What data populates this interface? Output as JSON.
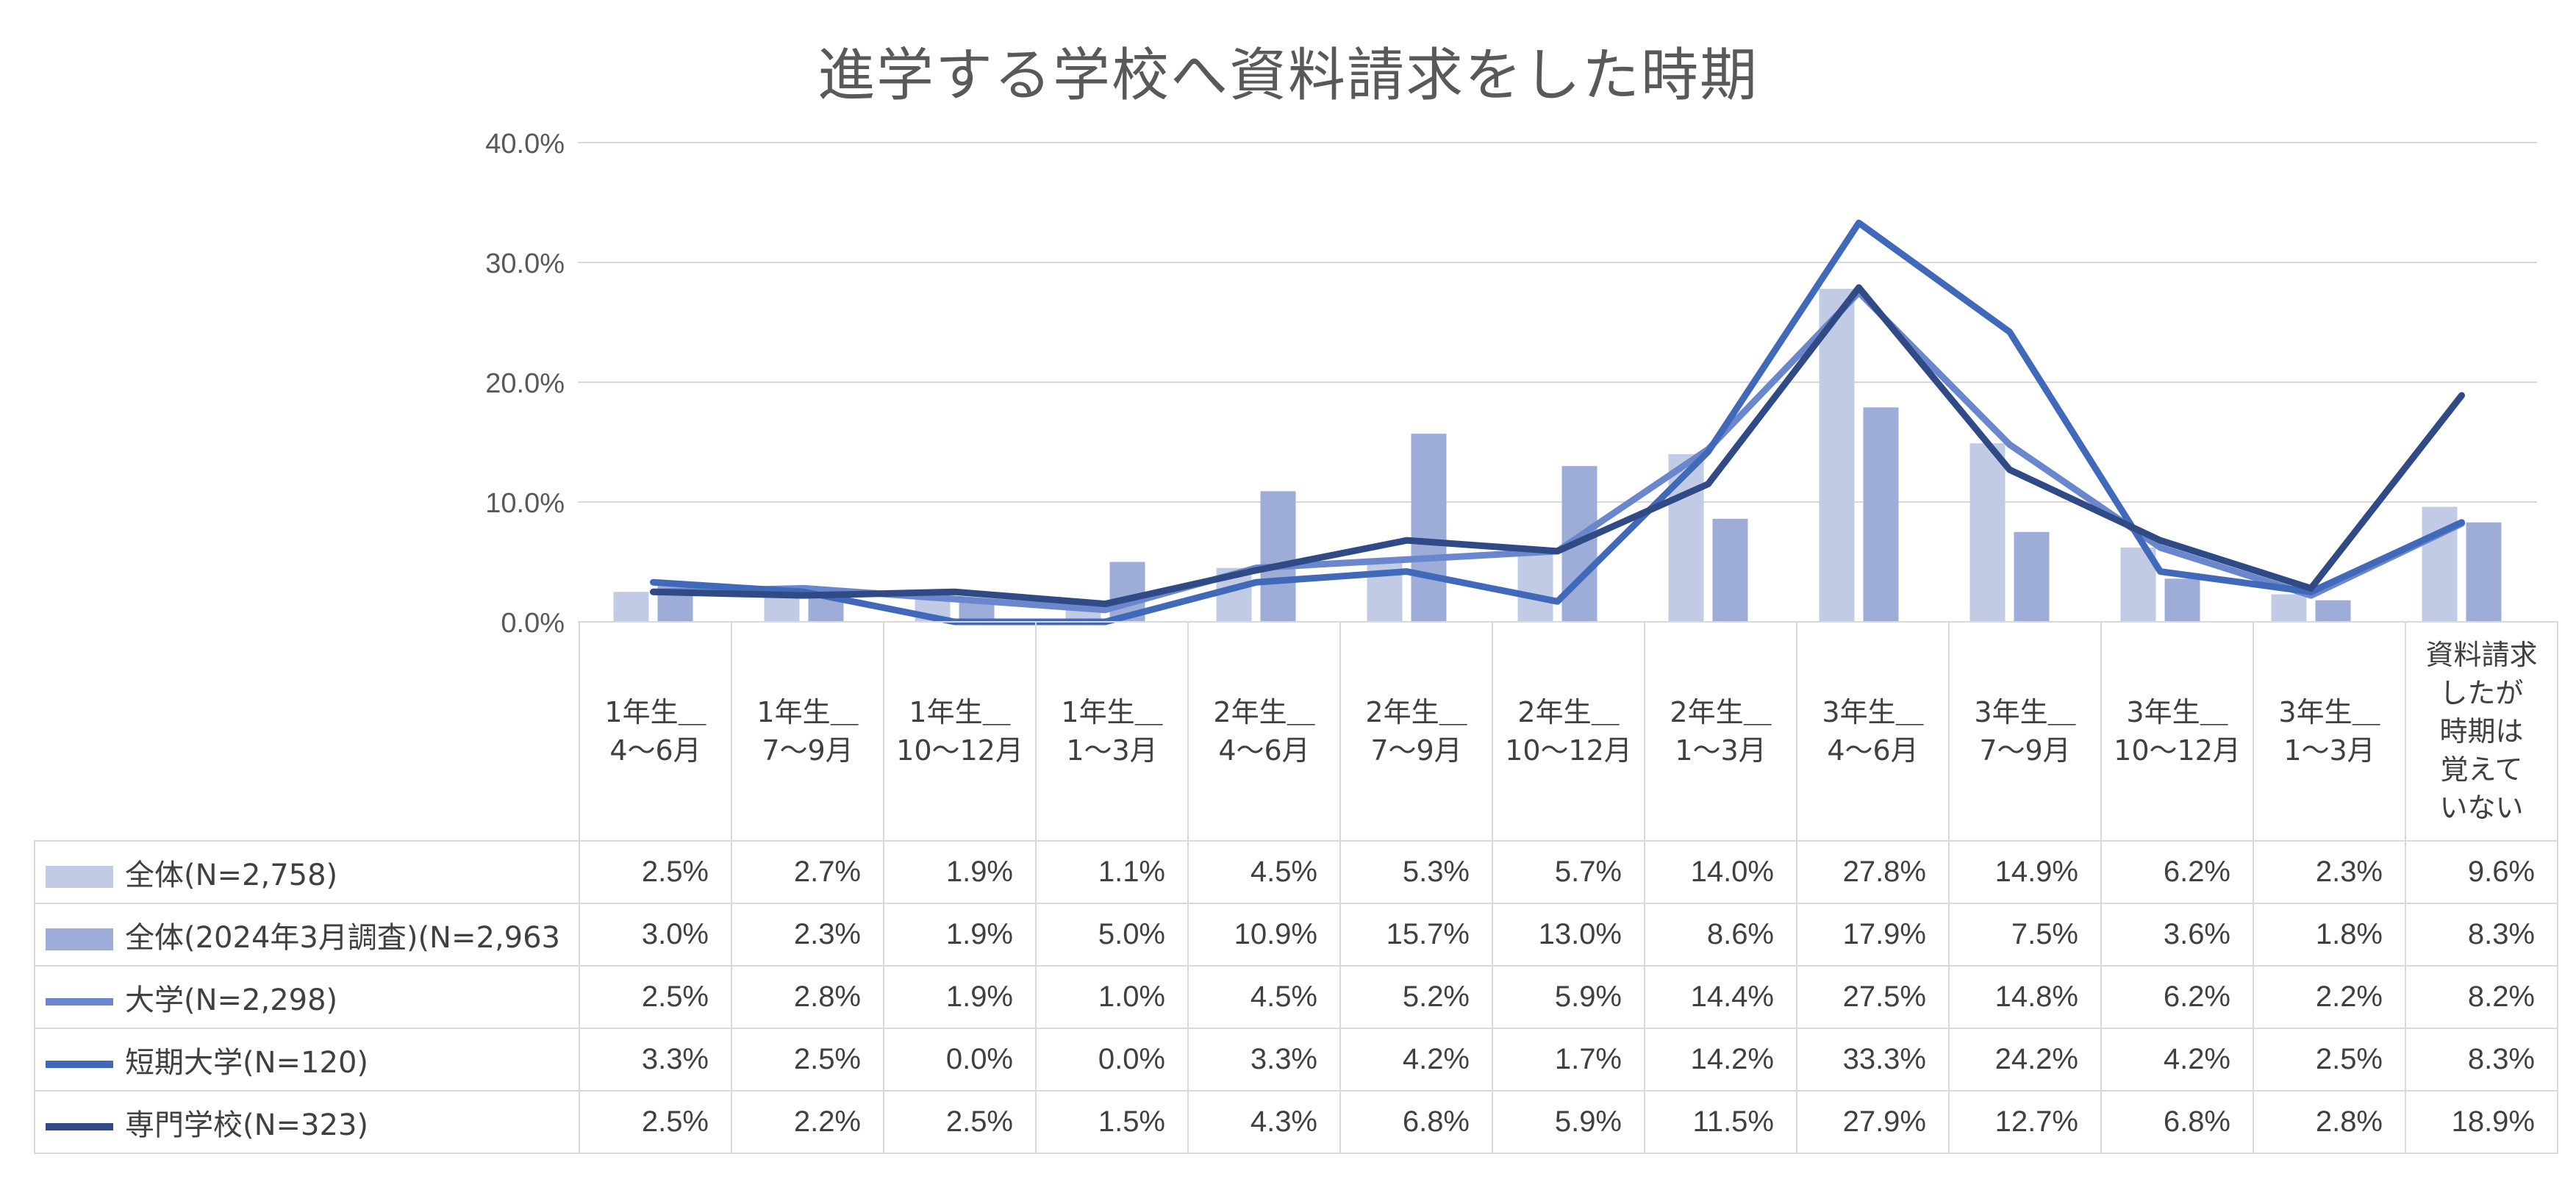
{
  "chart_data": {
    "type": "bar+line",
    "title": "進学する学校へ資料請求をした時期",
    "categories": [
      "1年生＿\n4～6月",
      "1年生＿\n7～9月",
      "1年生＿\n10～12月",
      "1年生＿\n1～3月",
      "2年生＿\n4～6月",
      "2年生＿\n7～9月",
      "2年生＿\n10～12月",
      "2年生＿\n1～3月",
      "3年生＿\n4～6月",
      "3年生＿\n7～9月",
      "3年生＿\n10～12月",
      "3年生＿\n1～3月",
      "資料請求\nしたが\n時期は\n覚えて\nいない"
    ],
    "y_ticks": [
      "0.0%",
      "10.0%",
      "20.0%",
      "30.0%",
      "40.0%"
    ],
    "ylim": [
      0,
      40
    ],
    "grid": true,
    "series": [
      {
        "name": "全体(N=2,758)",
        "kind": "bar",
        "color": "#c2cbe6",
        "values": [
          2.5,
          2.7,
          1.9,
          1.1,
          4.5,
          5.3,
          5.7,
          14.0,
          27.8,
          14.9,
          6.2,
          2.3,
          9.6
        ],
        "labels": [
          "2.5%",
          "2.7%",
          "1.9%",
          "1.1%",
          "4.5%",
          "5.3%",
          "5.7%",
          "14.0%",
          "27.8%",
          "14.9%",
          "6.2%",
          "2.3%",
          "9.6%"
        ]
      },
      {
        "name": "全体(2024年3月調査)(N=2,963",
        "kind": "bar",
        "color": "#9eacd8",
        "values": [
          3.0,
          2.3,
          1.9,
          5.0,
          10.9,
          15.7,
          13.0,
          8.6,
          17.9,
          7.5,
          3.6,
          1.8,
          8.3
        ],
        "labels": [
          "3.0%",
          "2.3%",
          "1.9%",
          "5.0%",
          "10.9%",
          "15.7%",
          "13.0%",
          "8.6%",
          "17.9%",
          "7.5%",
          "3.6%",
          "1.8%",
          "8.3%"
        ]
      },
      {
        "name": "大学(N=2,298)",
        "kind": "line",
        "color": "#6a86cc",
        "values": [
          2.5,
          2.8,
          1.9,
          1.0,
          4.5,
          5.2,
          5.9,
          14.4,
          27.5,
          14.8,
          6.2,
          2.2,
          8.2
        ],
        "labels": [
          "2.5%",
          "2.8%",
          "1.9%",
          "1.0%",
          "4.5%",
          "5.2%",
          "5.9%",
          "14.4%",
          "27.5%",
          "14.8%",
          "6.2%",
          "2.2%",
          "8.2%"
        ]
      },
      {
        "name": "短期大学(N=120)",
        "kind": "line",
        "color": "#4169ba",
        "values": [
          3.3,
          2.5,
          0.0,
          0.0,
          3.3,
          4.2,
          1.7,
          14.2,
          33.3,
          24.2,
          4.2,
          2.5,
          8.3
        ],
        "labels": [
          "3.3%",
          "2.5%",
          "0.0%",
          "0.0%",
          "3.3%",
          "4.2%",
          "1.7%",
          "14.2%",
          "33.3%",
          "24.2%",
          "4.2%",
          "2.5%",
          "8.3%"
        ]
      },
      {
        "name": "専門学校(N=323)",
        "kind": "line",
        "color": "#2f4a85",
        "values": [
          2.5,
          2.2,
          2.5,
          1.5,
          4.3,
          6.8,
          5.9,
          11.5,
          27.9,
          12.7,
          6.8,
          2.8,
          18.9
        ],
        "labels": [
          "2.5%",
          "2.2%",
          "2.5%",
          "1.5%",
          "4.3%",
          "6.8%",
          "5.9%",
          "11.5%",
          "27.9%",
          "12.7%",
          "6.8%",
          "2.8%",
          "18.9%"
        ]
      }
    ]
  }
}
